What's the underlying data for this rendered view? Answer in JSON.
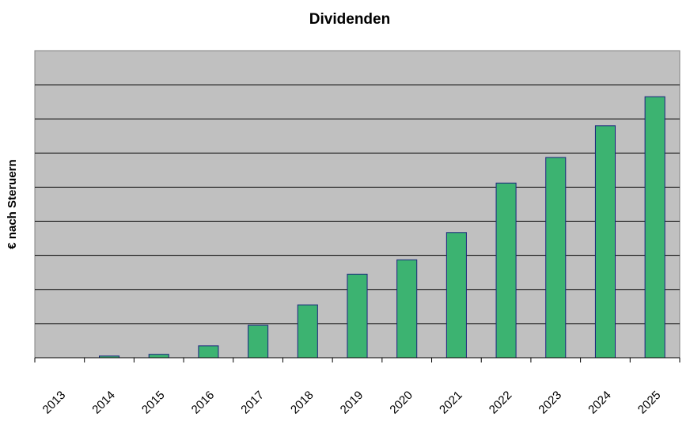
{
  "chart_data": {
    "type": "bar",
    "title": "Dividenden",
    "xlabel": "",
    "ylabel": "€ nach Steruern",
    "categories": [
      "2013",
      "2014",
      "2015",
      "2016",
      "2017",
      "2018",
      "2019",
      "2020",
      "2021",
      "2022",
      "2023",
      "2024",
      "2025"
    ],
    "values": [
      0,
      0.05,
      0.1,
      0.35,
      0.95,
      1.55,
      2.45,
      2.87,
      3.67,
      5.12,
      5.87,
      6.8,
      7.65
    ],
    "ylim": [
      0,
      9
    ],
    "y_gridlines": 9,
    "grid": true,
    "y_tick_labels_shown": false,
    "colors": {
      "bar_fill": "#3cb371",
      "bar_stroke": "#1a237e",
      "plot_background": "#c0c0c0",
      "gridline": "#000000"
    }
  }
}
